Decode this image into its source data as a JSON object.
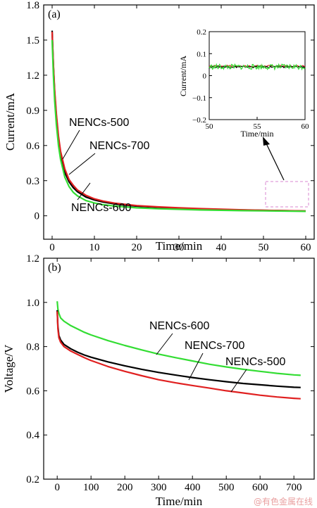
{
  "chart_data": [
    {
      "panel_label": "(a)",
      "type": "line",
      "xlabel": "Time/min",
      "ylabel": "Current/mA",
      "xlim": [
        -2,
        62
      ],
      "ylim": [
        -0.2,
        1.8
      ],
      "xticks": [
        0,
        10,
        20,
        30,
        40,
        50,
        60
      ],
      "yticks": [
        0,
        0.3,
        0.6,
        0.9,
        1.2,
        1.5,
        1.8
      ],
      "ytick_labels": [
        "0",
        "0.3",
        "0.6",
        "0.9",
        "1.2",
        "1.5",
        "1.8"
      ],
      "series": [
        {
          "name": "NENCs-500",
          "color": "#000000",
          "x": [
            0,
            0.3,
            0.6,
            1,
            1.5,
            2,
            3,
            4,
            5,
            6,
            8,
            10,
            12,
            15,
            20,
            25,
            30,
            35,
            40,
            45,
            50,
            55,
            60
          ],
          "y": [
            1.58,
            1.28,
            1.05,
            0.85,
            0.66,
            0.53,
            0.37,
            0.29,
            0.24,
            0.205,
            0.16,
            0.135,
            0.118,
            0.1,
            0.082,
            0.072,
            0.064,
            0.058,
            0.053,
            0.049,
            0.046,
            0.043,
            0.04
          ]
        },
        {
          "name": "NENCs-700",
          "color": "#e02020",
          "x": [
            0,
            0.3,
            0.6,
            1,
            1.5,
            2,
            3,
            4,
            5,
            6,
            8,
            10,
            12,
            15,
            20,
            25,
            30,
            35,
            40,
            45,
            50,
            55,
            60
          ],
          "y": [
            1.57,
            1.29,
            1.07,
            0.87,
            0.68,
            0.55,
            0.4,
            0.31,
            0.26,
            0.22,
            0.175,
            0.145,
            0.126,
            0.107,
            0.087,
            0.076,
            0.068,
            0.061,
            0.056,
            0.051,
            0.047,
            0.044,
            0.041
          ]
        },
        {
          "name": "NENCs-600",
          "color": "#33dd33",
          "x": [
            0,
            0.3,
            0.6,
            1,
            1.5,
            2,
            3,
            4,
            5,
            6,
            8,
            10,
            12,
            15,
            20,
            25,
            30,
            35,
            40,
            45,
            50,
            55,
            60
          ],
          "y": [
            1.5,
            1.2,
            0.98,
            0.78,
            0.6,
            0.48,
            0.33,
            0.25,
            0.2,
            0.17,
            0.13,
            0.11,
            0.095,
            0.082,
            0.068,
            0.06,
            0.055,
            0.05,
            0.047,
            0.044,
            0.042,
            0.04,
            0.038
          ]
        }
      ],
      "annotations": [
        "NENCs-500",
        "NENCs-700",
        "NENCs-600"
      ],
      "inset": {
        "xlabel": "Time/min",
        "ylabel": "Current/mA",
        "xlim": [
          50,
          60
        ],
        "ylim": [
          -0.2,
          0.2
        ],
        "xticks": [
          50,
          55,
          60
        ],
        "yticks": [
          -0.2,
          -0.1,
          0,
          0.1,
          0.2
        ],
        "ytick_labels": [
          "−0.2",
          "−0.1",
          "0",
          "0.1",
          "0.2"
        ],
        "level": {
          "NENCs-500": 0.04,
          "NENCs-700": 0.043,
          "NENCs-600": 0.04
        }
      }
    },
    {
      "panel_label": "(b)",
      "type": "line",
      "xlabel": "Time/min",
      "ylabel": "Voltage/V",
      "xlim": [
        -40,
        760
      ],
      "ylim": [
        0.2,
        1.2
      ],
      "xticks": [
        0,
        100,
        200,
        300,
        400,
        500,
        600,
        700
      ],
      "yticks": [
        0.2,
        0.4,
        0.6,
        0.8,
        1.0,
        1.2
      ],
      "ytick_labels": [
        "0.2",
        "0.4",
        "0.6",
        "0.8",
        "1.0",
        "1.2"
      ],
      "series": [
        {
          "name": "NENCs-600",
          "color": "#33dd33",
          "x": [
            0,
            2,
            5,
            10,
            20,
            40,
            60,
            80,
            100,
            150,
            200,
            250,
            300,
            350,
            400,
            450,
            500,
            550,
            600,
            650,
            700,
            720
          ],
          "y": [
            1.005,
            0.97,
            0.95,
            0.93,
            0.915,
            0.895,
            0.88,
            0.865,
            0.853,
            0.827,
            0.805,
            0.785,
            0.766,
            0.75,
            0.735,
            0.72,
            0.708,
            0.697,
            0.688,
            0.679,
            0.672,
            0.67
          ]
        },
        {
          "name": "NENCs-700",
          "color": "#000000",
          "x": [
            0,
            2,
            5,
            10,
            20,
            40,
            60,
            80,
            100,
            150,
            200,
            250,
            300,
            350,
            400,
            450,
            500,
            550,
            600,
            650,
            700,
            720
          ],
          "y": [
            0.965,
            0.89,
            0.85,
            0.83,
            0.81,
            0.79,
            0.775,
            0.762,
            0.752,
            0.731,
            0.713,
            0.697,
            0.683,
            0.671,
            0.66,
            0.65,
            0.641,
            0.633,
            0.627,
            0.621,
            0.616,
            0.615
          ]
        },
        {
          "name": "NENCs-500",
          "color": "#e02020",
          "x": [
            0,
            2,
            5,
            10,
            20,
            40,
            60,
            80,
            100,
            150,
            200,
            250,
            300,
            350,
            400,
            450,
            500,
            550,
            600,
            650,
            700,
            720
          ],
          "y": [
            0.96,
            0.88,
            0.84,
            0.82,
            0.8,
            0.78,
            0.765,
            0.75,
            0.737,
            0.71,
            0.688,
            0.668,
            0.65,
            0.636,
            0.624,
            0.612,
            0.6,
            0.59,
            0.58,
            0.572,
            0.566,
            0.564
          ]
        }
      ],
      "annotations": [
        "NENCs-600",
        "NENCs-700",
        "NENCs-500"
      ]
    }
  ],
  "watermark": "@有色金属在线"
}
